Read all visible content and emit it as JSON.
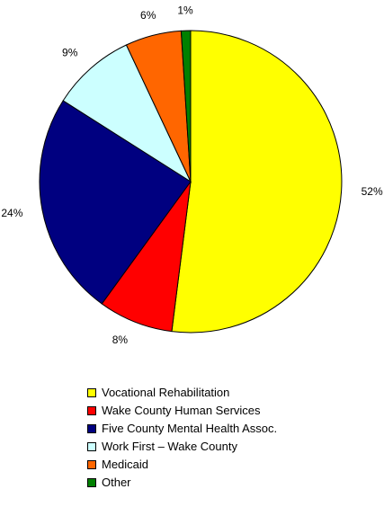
{
  "chart_data": {
    "type": "pie",
    "title": "",
    "start": "12 o'clock",
    "direction": "clockwise",
    "legend_position": "bottom",
    "slices": [
      {
        "label": "Vocational Rehabilitation",
        "value": 52,
        "value_label": "52%",
        "color": "#ffff00"
      },
      {
        "label": "Wake County Human Services",
        "value": 8,
        "value_label": "8%",
        "color": "#ff0000"
      },
      {
        "label": "Five County Mental Health Assoc.",
        "value": 24,
        "value_label": "24%",
        "color": "#000080"
      },
      {
        "label": "Work First – Wake County",
        "value": 9,
        "value_label": "9%",
        "color": "#ccffff"
      },
      {
        "label": "Medicaid",
        "value": 6,
        "value_label": "6%",
        "color": "#ff6600"
      },
      {
        "label": "Other",
        "value": 1,
        "value_label": "1%",
        "color": "#008000"
      }
    ]
  }
}
